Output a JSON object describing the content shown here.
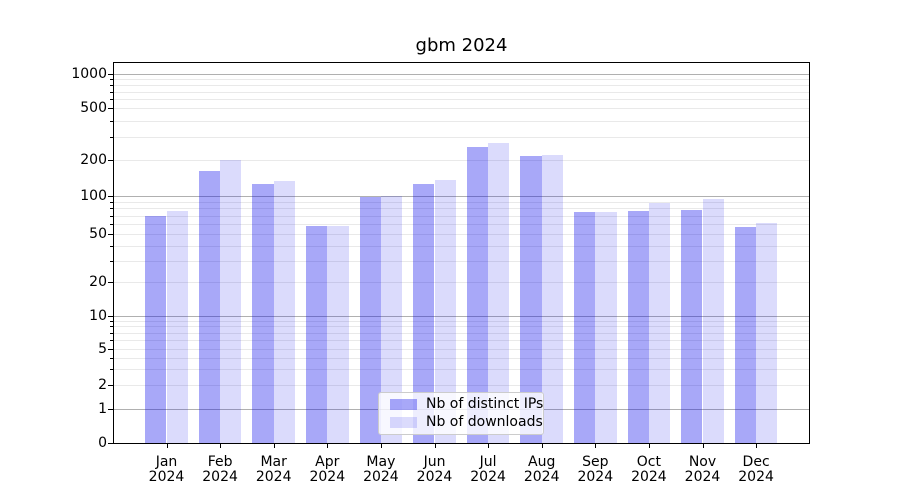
{
  "chart_data": {
    "type": "bar",
    "title": "gbm 2024",
    "xlabel": "",
    "ylabel": "",
    "categories": [
      "Jan",
      "Feb",
      "Mar",
      "Apr",
      "May",
      "Jun",
      "Jul",
      "Aug",
      "Sep",
      "Oct",
      "Nov",
      "Dec"
    ],
    "year_label": "2024",
    "series": [
      {
        "name": "Nb of distinct IPs",
        "key": "distinct-ips",
        "color": "rgba(0,0,234,0.34)",
        "values": [
          70,
          160,
          127,
          58,
          99,
          126,
          250,
          215,
          75,
          76,
          78,
          57
        ]
      },
      {
        "name": "Nb of downloads",
        "key": "downloads",
        "color": "rgba(0,0,234,0.14)",
        "values": [
          76,
          200,
          133,
          58,
          100,
          137,
          271,
          219,
          75,
          88,
          96,
          61
        ]
      }
    ],
    "yscale": "symlog",
    "y_ticks": [
      0,
      1,
      2,
      5,
      10,
      20,
      50,
      100,
      200,
      500,
      1000
    ],
    "ylim": [
      0,
      1250
    ],
    "grid": true,
    "legend_position": "lower center"
  },
  "colors": {
    "major_grid": "#b0b0b0",
    "minor_grid": "#e9e9e9",
    "spine": "#000000",
    "text": "#000000",
    "legend_border": "#cccccc",
    "legend_background": "rgba(255,255,255,0.8)"
  }
}
